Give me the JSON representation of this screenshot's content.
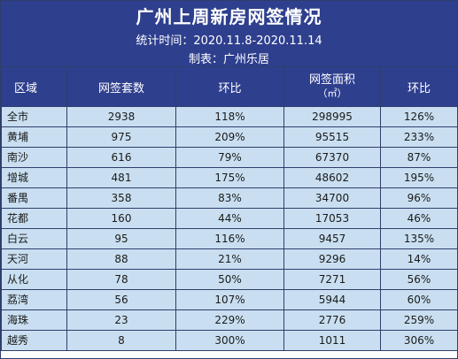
{
  "header": {
    "title": "广州上周新房网签情况",
    "stats_period": "统计时间：2020.11.8-2020.11.14",
    "maker": "制表：广州乐居"
  },
  "table": {
    "columns": {
      "region": "区域",
      "units": "网签套数",
      "units_change": "环比",
      "area": "网签面积",
      "area_unit": "（㎡）",
      "area_change": "环比"
    },
    "rows": [
      {
        "region": "全市",
        "units": "2938",
        "units_change": "118%",
        "area": "298995",
        "area_change": "126%"
      },
      {
        "region": "黄埔",
        "units": "975",
        "units_change": "209%",
        "area": "95515",
        "area_change": "233%"
      },
      {
        "region": "南沙",
        "units": "616",
        "units_change": "79%",
        "area": "67370",
        "area_change": "87%"
      },
      {
        "region": "增城",
        "units": "481",
        "units_change": "175%",
        "area": "48602",
        "area_change": "195%"
      },
      {
        "region": "番禺",
        "units": "358",
        "units_change": "83%",
        "area": "34700",
        "area_change": "96%"
      },
      {
        "region": "花都",
        "units": "160",
        "units_change": "44%",
        "area": "17053",
        "area_change": "46%"
      },
      {
        "region": "白云",
        "units": "95",
        "units_change": "116%",
        "area": "9457",
        "area_change": "135%"
      },
      {
        "region": "天河",
        "units": "88",
        "units_change": "21%",
        "area": "9296",
        "area_change": "14%"
      },
      {
        "region": "从化",
        "units": "78",
        "units_change": "50%",
        "area": "7271",
        "area_change": "56%"
      },
      {
        "region": "荔湾",
        "units": "56",
        "units_change": "107%",
        "area": "5944",
        "area_change": "60%"
      },
      {
        "region": "海珠",
        "units": "23",
        "units_change": "229%",
        "area": "2776",
        "area_change": "259%"
      },
      {
        "region": "越秀",
        "units": "8",
        "units_change": "300%",
        "area": "1011",
        "area_change": "306%"
      }
    ]
  },
  "colors": {
    "header_bg": "#2e3f8e",
    "row_bg": "#c9dff1",
    "border": "#2f3e6b"
  }
}
